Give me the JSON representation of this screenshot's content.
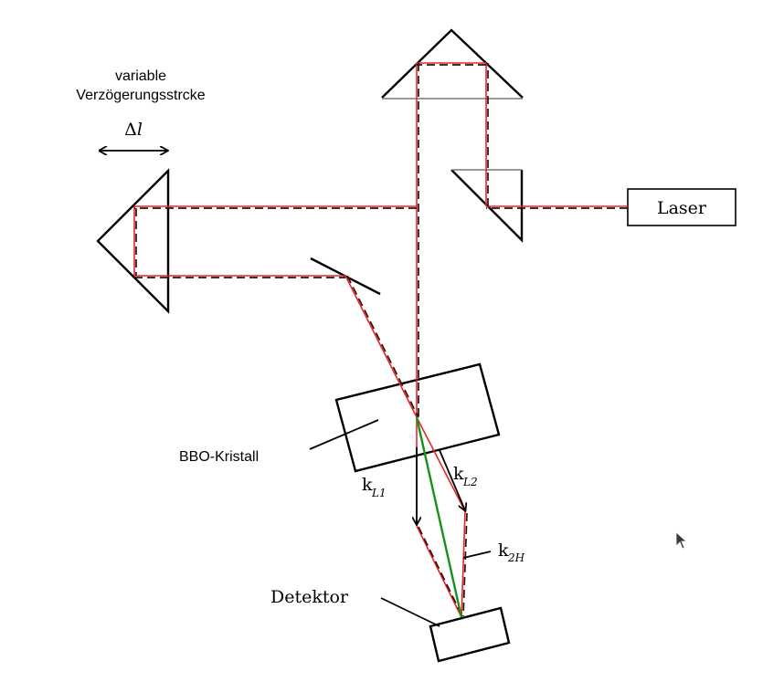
{
  "colors": {
    "background": "#ffffff",
    "beam": "#e8262a",
    "beam_dashed": "#2b1111",
    "second_harmonic": "#17921c",
    "outline": "#000000",
    "mirror_face": "#777777"
  },
  "labels": {
    "delay_line_line1": "variable",
    "delay_line_line2": "Verzögerungsstrcke",
    "delta_symbol": "Δ",
    "delta_l_var": "l",
    "laser": "Laser",
    "crystal": "BBO-Kristall",
    "k_letter": "k",
    "kL1_sub": "L1",
    "kL2_sub": "L2",
    "k2H_sub": "2H",
    "detector": "Detektor"
  },
  "icons": {
    "double_arrow": "double-headed-arrow-icon",
    "cursor": "mouse-pointer-icon"
  }
}
